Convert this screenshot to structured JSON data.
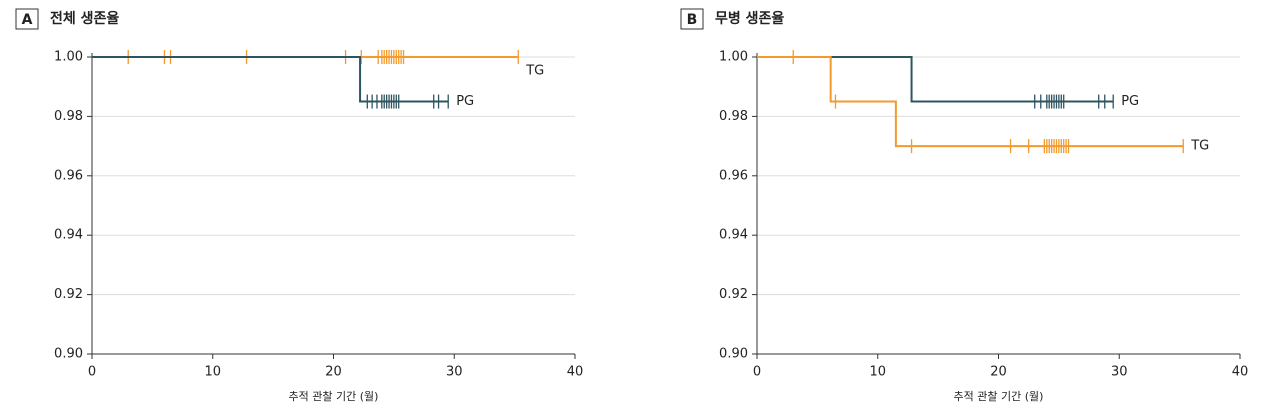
{
  "chart_data": [
    {
      "type": "step",
      "panel": "A",
      "title": "전체 생존율",
      "x_label": "추적 관찰 기간 (월)",
      "xlim": [
        0,
        40
      ],
      "xticks": [
        0,
        10,
        20,
        30,
        40
      ],
      "ylim": [
        0.9,
        1.0
      ],
      "yticks": [
        {
          "value": 0.9,
          "label": "0.90"
        },
        {
          "value": 0.92,
          "label": "0.92"
        },
        {
          "value": 0.94,
          "label": "0.94"
        },
        {
          "value": 0.96,
          "label": "0.96"
        },
        {
          "value": 0.98,
          "label": "0.98"
        },
        {
          "value": 1.0,
          "label": "1.00"
        }
      ],
      "grid": true,
      "series": [
        {
          "name": "TG",
          "color": "#f39a2b",
          "x": [
            0,
            35.3
          ],
          "values": [
            1.0,
            1.0
          ],
          "censored_x": [
            3,
            6,
            6.5,
            12.8,
            21,
            22.3,
            23.7,
            24,
            24.2,
            24.4,
            24.6,
            24.8,
            25,
            25.2,
            25.4,
            25.6,
            25.8,
            35.3
          ],
          "censored_y": [
            1.0,
            1.0,
            1.0,
            1.0,
            1.0,
            1.0,
            1.0,
            1.0,
            1.0,
            1.0,
            1.0,
            1.0,
            1.0,
            1.0,
            1.0,
            1.0,
            1.0,
            1.0
          ]
        },
        {
          "name": "PG",
          "color": "#2e5461",
          "x": [
            0,
            22.2,
            29.5
          ],
          "values": [
            1.0,
            0.985,
            0.985
          ],
          "censored_x": [
            22.8,
            23.2,
            23.6,
            24,
            24.2,
            24.4,
            24.6,
            24.8,
            25,
            25.2,
            25.4,
            28.3,
            28.7,
            29.5
          ],
          "censored_y": [
            0.985,
            0.985,
            0.985,
            0.985,
            0.985,
            0.985,
            0.985,
            0.985,
            0.985,
            0.985,
            0.985,
            0.985,
            0.985,
            0.985
          ]
        }
      ]
    },
    {
      "type": "step",
      "panel": "B",
      "title": "무병 생존율",
      "x_label": "추적 관찰 기간 (월)",
      "xlim": [
        0,
        40
      ],
      "xticks": [
        0,
        10,
        20,
        30,
        40
      ],
      "ylim": [
        0.9,
        1.0
      ],
      "yticks": [
        {
          "value": 0.9,
          "label": "0.90"
        },
        {
          "value": 0.92,
          "label": "0.92"
        },
        {
          "value": 0.94,
          "label": "0.94"
        },
        {
          "value": 0.96,
          "label": "0.96"
        },
        {
          "value": 0.98,
          "label": "0.98"
        },
        {
          "value": 1.0,
          "label": "1.00"
        }
      ],
      "grid": true,
      "series": [
        {
          "name": "PG",
          "color": "#2e5461",
          "x": [
            0,
            12.8,
            29.5
          ],
          "values": [
            1.0,
            0.985,
            0.985
          ],
          "censored_x": [
            23,
            23.5,
            24,
            24.2,
            24.4,
            24.6,
            24.8,
            25,
            25.2,
            25.4,
            28.3,
            28.8,
            29.5
          ],
          "censored_y": [
            0.985,
            0.985,
            0.985,
            0.985,
            0.985,
            0.985,
            0.985,
            0.985,
            0.985,
            0.985,
            0.985,
            0.985,
            0.985
          ]
        },
        {
          "name": "TG",
          "color": "#f39a2b",
          "x": [
            0,
            6.1,
            11.5,
            35.3
          ],
          "values": [
            1.0,
            0.985,
            0.97,
            0.97
          ],
          "censored_x": [
            3,
            6.5,
            12.8,
            21,
            22.5,
            23.8,
            24,
            24.2,
            24.4,
            24.6,
            24.8,
            25,
            25.2,
            25.4,
            25.6,
            25.8,
            35.3
          ],
          "censored_y": [
            1.0,
            0.985,
            0.97,
            0.97,
            0.97,
            0.97,
            0.97,
            0.97,
            0.97,
            0.97,
            0.97,
            0.97,
            0.97,
            0.97,
            0.97,
            0.97,
            0.97
          ]
        }
      ]
    }
  ]
}
